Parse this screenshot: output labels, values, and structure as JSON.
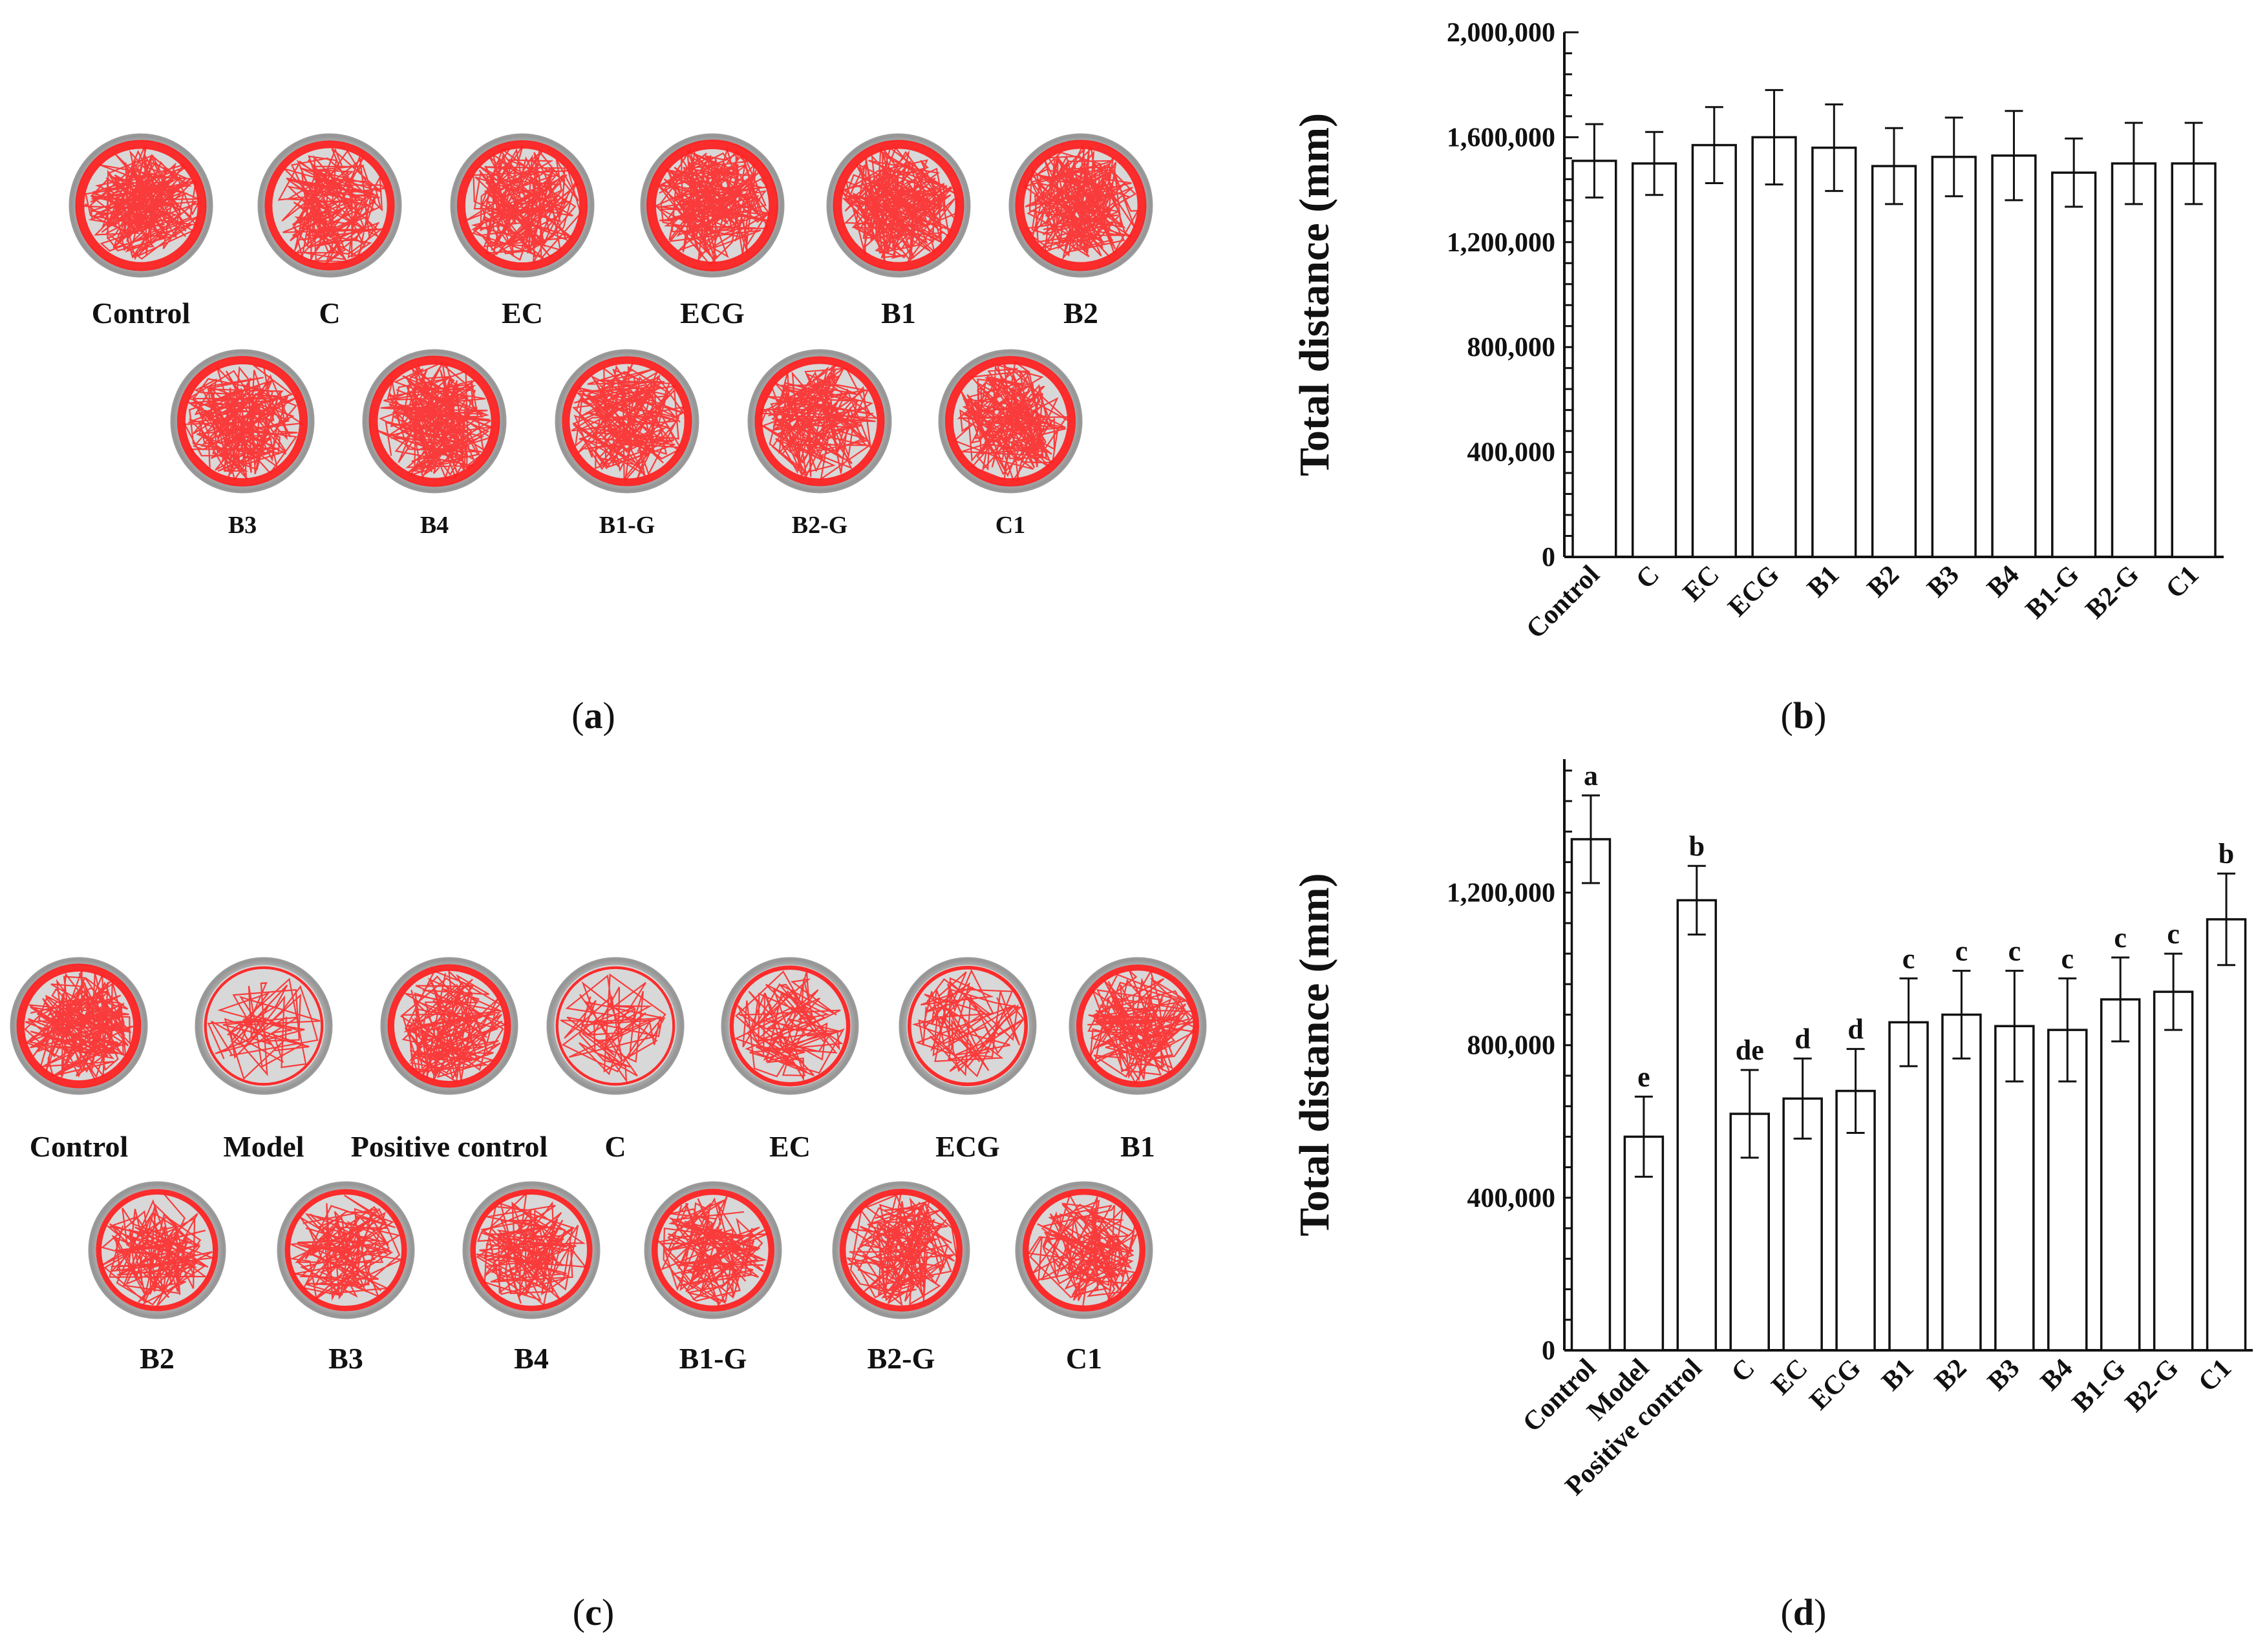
{
  "panels": {
    "a": {
      "letter": "a",
      "groups": [
        "Control",
        "C",
        "EC",
        "ECG",
        "B1",
        "B2",
        "B3",
        "B4",
        "B1-G",
        "B2-G",
        "C1"
      ]
    },
    "c": {
      "letter": "c",
      "groups": [
        "Control",
        "Model",
        "Positive control",
        "C",
        "EC",
        "ECG",
        "B1",
        "B2",
        "B3",
        "B4",
        "B1-G",
        "B2-G",
        "C1"
      ]
    }
  },
  "chart_data": [
    {
      "id": "b",
      "panel_letter": "b",
      "type": "bar",
      "ylabel": "Total distance (mm)",
      "ylim": [
        0,
        2000000
      ],
      "yticks": [
        "0",
        "400,000",
        "800,000",
        "1,200,000",
        "1,600,000",
        "2,000,000"
      ],
      "ytick_values": [
        0,
        400000,
        800000,
        1200000,
        1600000,
        2000000
      ],
      "categories": [
        "Control",
        "C",
        "EC",
        "ECG",
        "B1",
        "B2",
        "B3",
        "B4",
        "B1-G",
        "B2-G",
        "C1"
      ],
      "values": [
        1510000,
        1500000,
        1570000,
        1600000,
        1560000,
        1490000,
        1525000,
        1530000,
        1465000,
        1500000,
        1500000
      ],
      "errors": [
        140000,
        120000,
        145000,
        180000,
        165000,
        145000,
        150000,
        170000,
        130000,
        155000,
        155000
      ]
    },
    {
      "id": "d",
      "panel_letter": "d",
      "type": "bar",
      "ylabel": "Total distance (mm)",
      "ylim": [
        0,
        1550000
      ],
      "yticks": [
        "0",
        "400,000",
        "800,000",
        "1,200,000"
      ],
      "ytick_values": [
        0,
        400000,
        800000,
        1200000
      ],
      "categories": [
        "Control",
        "Model",
        "Positive control",
        "C",
        "EC",
        "ECG",
        "B1",
        "B2",
        "B3",
        "B4",
        "B1-G",
        "B2-G",
        "C1"
      ],
      "values": [
        1340000,
        560000,
        1180000,
        620000,
        660000,
        680000,
        860000,
        880000,
        850000,
        840000,
        920000,
        940000,
        1130000
      ],
      "errors": [
        115000,
        105000,
        90000,
        115000,
        105000,
        110000,
        115000,
        115000,
        145000,
        135000,
        110000,
        100000,
        120000
      ],
      "significance": [
        "a",
        "e",
        "b",
        "de",
        "d",
        "d",
        "c",
        "c",
        "c",
        "c",
        "c",
        "c",
        "b"
      ]
    }
  ]
}
